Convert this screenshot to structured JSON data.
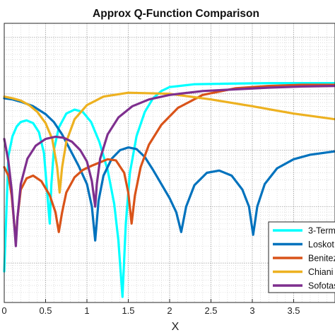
{
  "chart_data": {
    "type": "line",
    "title": "Approx Q-Function Comparison",
    "xlabel": "X",
    "ylabel": "",
    "xlim": [
      0,
      4
    ],
    "yscale": "log",
    "grid": "major and minor, dotted gray",
    "x_ticks": [
      "0",
      "0.5",
      "1",
      "1.5",
      "2",
      "2.5",
      "3",
      "3.5"
    ],
    "legend_position": "bottom-right",
    "series": [
      {
        "name": "3-Term",
        "color": "#00FFFF",
        "points": [
          [
            0.0,
            -4.15
          ],
          [
            0.05,
            -2.1
          ],
          [
            0.1,
            -1.75
          ],
          [
            0.15,
            -1.58
          ],
          [
            0.2,
            -1.5
          ],
          [
            0.27,
            -1.47
          ],
          [
            0.35,
            -1.52
          ],
          [
            0.42,
            -1.68
          ],
          [
            0.48,
            -2.05
          ],
          [
            0.52,
            -2.75
          ],
          [
            0.55,
            -3.3
          ],
          [
            0.57,
            -2.6
          ],
          [
            0.6,
            -2.0
          ],
          [
            0.66,
            -1.6
          ],
          [
            0.75,
            -1.35
          ],
          [
            0.85,
            -1.28
          ],
          [
            0.95,
            -1.32
          ],
          [
            1.05,
            -1.5
          ],
          [
            1.15,
            -1.85
          ],
          [
            1.25,
            -2.35
          ],
          [
            1.33,
            -2.95
          ],
          [
            1.38,
            -3.6
          ],
          [
            1.43,
            -4.6
          ],
          [
            1.47,
            -3.3
          ],
          [
            1.52,
            -2.4
          ],
          [
            1.6,
            -1.75
          ],
          [
            1.7,
            -1.32
          ],
          [
            1.8,
            -1.08
          ],
          [
            1.9,
            -0.95
          ],
          [
            2.0,
            -0.88
          ],
          [
            2.3,
            -0.83
          ],
          [
            2.7,
            -0.82
          ],
          [
            3.2,
            -0.81
          ],
          [
            4.0,
            -0.81
          ]
        ]
      },
      {
        "name": "Loskot",
        "color": "#0072BD",
        "points": [
          [
            0.0,
            -1.08
          ],
          [
            0.1,
            -1.1
          ],
          [
            0.2,
            -1.14
          ],
          [
            0.35,
            -1.22
          ],
          [
            0.5,
            -1.36
          ],
          [
            0.6,
            -1.5
          ],
          [
            0.7,
            -1.72
          ],
          [
            0.8,
            -2.0
          ],
          [
            0.9,
            -2.28
          ],
          [
            1.0,
            -2.6
          ],
          [
            1.06,
            -3.0
          ],
          [
            1.1,
            -3.6
          ],
          [
            1.14,
            -2.9
          ],
          [
            1.2,
            -2.45
          ],
          [
            1.3,
            -2.15
          ],
          [
            1.4,
            -2.0
          ],
          [
            1.5,
            -1.95
          ],
          [
            1.6,
            -1.98
          ],
          [
            1.7,
            -2.12
          ],
          [
            1.8,
            -2.35
          ],
          [
            1.9,
            -2.6
          ],
          [
            2.0,
            -2.85
          ],
          [
            2.08,
            -3.1
          ],
          [
            2.14,
            -3.45
          ],
          [
            2.2,
            -3.0
          ],
          [
            2.3,
            -2.62
          ],
          [
            2.45,
            -2.4
          ],
          [
            2.6,
            -2.36
          ],
          [
            2.75,
            -2.45
          ],
          [
            2.88,
            -2.7
          ],
          [
            2.96,
            -3.0
          ],
          [
            3.01,
            -3.5
          ],
          [
            3.06,
            -3.0
          ],
          [
            3.15,
            -2.6
          ],
          [
            3.3,
            -2.32
          ],
          [
            3.5,
            -2.16
          ],
          [
            3.7,
            -2.08
          ],
          [
            4.0,
            -2.02
          ]
        ]
      },
      {
        "name": "Benitez",
        "color": "#D95319",
        "points": [
          [
            0.0,
            -2.3
          ],
          [
            0.05,
            -2.45
          ],
          [
            0.09,
            -2.8
          ],
          [
            0.12,
            -3.3
          ],
          [
            0.14,
            -3.6
          ],
          [
            0.16,
            -3.2
          ],
          [
            0.2,
            -2.7
          ],
          [
            0.27,
            -2.5
          ],
          [
            0.35,
            -2.45
          ],
          [
            0.45,
            -2.55
          ],
          [
            0.55,
            -2.8
          ],
          [
            0.62,
            -3.1
          ],
          [
            0.66,
            -3.45
          ],
          [
            0.7,
            -3.1
          ],
          [
            0.75,
            -2.75
          ],
          [
            0.85,
            -2.48
          ],
          [
            0.95,
            -2.35
          ],
          [
            1.05,
            -2.28
          ],
          [
            1.15,
            -2.22
          ],
          [
            1.25,
            -2.16
          ],
          [
            1.35,
            -2.18
          ],
          [
            1.45,
            -2.4
          ],
          [
            1.5,
            -2.75
          ],
          [
            1.54,
            -3.3
          ],
          [
            1.58,
            -2.8
          ],
          [
            1.65,
            -2.3
          ],
          [
            1.75,
            -1.9
          ],
          [
            1.9,
            -1.55
          ],
          [
            2.1,
            -1.25
          ],
          [
            2.4,
            -1.02
          ],
          [
            2.8,
            -0.9
          ],
          [
            3.2,
            -0.86
          ],
          [
            3.6,
            -0.84
          ],
          [
            4.0,
            -0.84
          ]
        ]
      },
      {
        "name": "Chiani",
        "color": "#EDB120",
        "points": [
          [
            0.0,
            -1.05
          ],
          [
            0.1,
            -1.08
          ],
          [
            0.2,
            -1.12
          ],
          [
            0.3,
            -1.2
          ],
          [
            0.4,
            -1.32
          ],
          [
            0.5,
            -1.52
          ],
          [
            0.58,
            -1.8
          ],
          [
            0.64,
            -2.3
          ],
          [
            0.67,
            -2.75
          ],
          [
            0.7,
            -2.3
          ],
          [
            0.75,
            -1.85
          ],
          [
            0.85,
            -1.45
          ],
          [
            1.0,
            -1.2
          ],
          [
            1.2,
            -1.05
          ],
          [
            1.5,
            -0.98
          ],
          [
            2.0,
            -1.0
          ],
          [
            2.5,
            -1.1
          ],
          [
            3.0,
            -1.22
          ],
          [
            3.5,
            -1.35
          ],
          [
            4.0,
            -1.45
          ]
        ]
      },
      {
        "name": "Sofotasios",
        "color": "#7E2F8E",
        "points": [
          [
            0.0,
            -1.8
          ],
          [
            0.02,
            -1.95
          ],
          [
            0.05,
            -2.2
          ],
          [
            0.09,
            -2.7
          ],
          [
            0.12,
            -3.3
          ],
          [
            0.14,
            -3.7
          ],
          [
            0.16,
            -3.2
          ],
          [
            0.2,
            -2.6
          ],
          [
            0.28,
            -2.15
          ],
          [
            0.38,
            -1.92
          ],
          [
            0.5,
            -1.8
          ],
          [
            0.62,
            -1.76
          ],
          [
            0.72,
            -1.78
          ],
          [
            0.82,
            -1.85
          ],
          [
            0.92,
            -2.0
          ],
          [
            1.0,
            -2.2
          ],
          [
            1.06,
            -2.55
          ],
          [
            1.1,
            -3.0
          ],
          [
            1.12,
            -2.6
          ],
          [
            1.16,
            -2.15
          ],
          [
            1.25,
            -1.72
          ],
          [
            1.38,
            -1.42
          ],
          [
            1.55,
            -1.22
          ],
          [
            1.75,
            -1.1
          ],
          [
            2.0,
            -1.02
          ],
          [
            2.4,
            -0.95
          ],
          [
            2.8,
            -0.92
          ],
          [
            3.2,
            -0.89
          ],
          [
            3.6,
            -0.87
          ],
          [
            4.0,
            -0.86
          ]
        ]
      }
    ]
  }
}
